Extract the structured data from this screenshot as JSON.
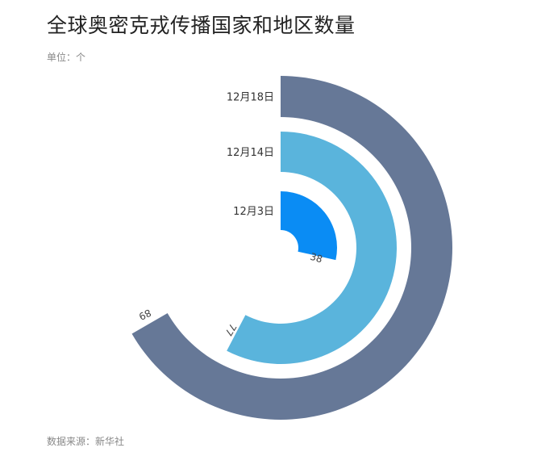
{
  "title": "全球奥密克戎传播国家和地区数量",
  "unit": "单位：个",
  "source": "数据来源：新华社",
  "chart_data": {
    "type": "radial-bar",
    "title": "全球奥密克戎传播国家和地区数量",
    "categories": [
      "12月3日",
      "12月14日",
      "12月18日"
    ],
    "values": [
      38,
      77,
      89
    ],
    "value_max_full_circle": 133.5,
    "colors": [
      "#0a8cf4",
      "#5ab4dc",
      "#667897"
    ],
    "grid": false,
    "legend": "none"
  }
}
